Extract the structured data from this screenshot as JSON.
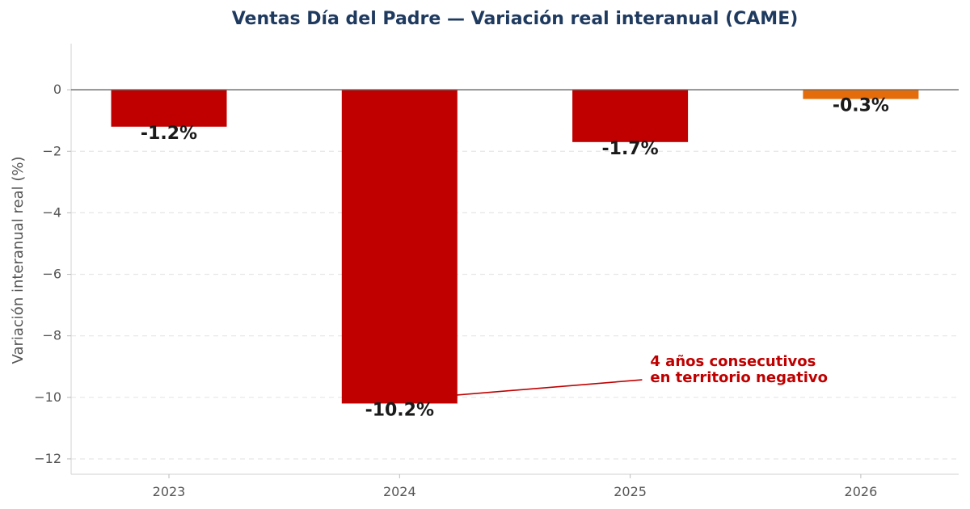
{
  "chart_data": {
    "type": "bar",
    "title": "Ventas Día del Padre — Variación real interanual (CAME)",
    "xlabel": "",
    "ylabel": "Variación interanual real (%)",
    "categories": [
      "2023",
      "2024",
      "2025",
      "2026"
    ],
    "values": [
      -1.2,
      -10.2,
      -1.7,
      -0.3
    ],
    "data_labels": [
      "-1.2%",
      "-10.2%",
      "-1.7%",
      "-0.3%"
    ],
    "bar_colors": [
      "#c00000",
      "#c00000",
      "#c00000",
      "#e46c0a"
    ],
    "ylim": [
      -12.5,
      1.5
    ],
    "yticks": [
      0,
      -2,
      -4,
      -6,
      -8,
      -10,
      -12
    ],
    "ytick_labels": [
      "0",
      "−2",
      "−4",
      "−6",
      "−8",
      "−10",
      "−12"
    ],
    "grid": "y-dashed",
    "zero_line": true,
    "annotation": {
      "lines": [
        "4 años consecutivos",
        "en territorio negativo"
      ],
      "target_category": "2024",
      "target_value": -10.2,
      "text_anchor_category_offset": 2.04,
      "text_anchor_value": -9.35,
      "color": "#c00000"
    }
  }
}
